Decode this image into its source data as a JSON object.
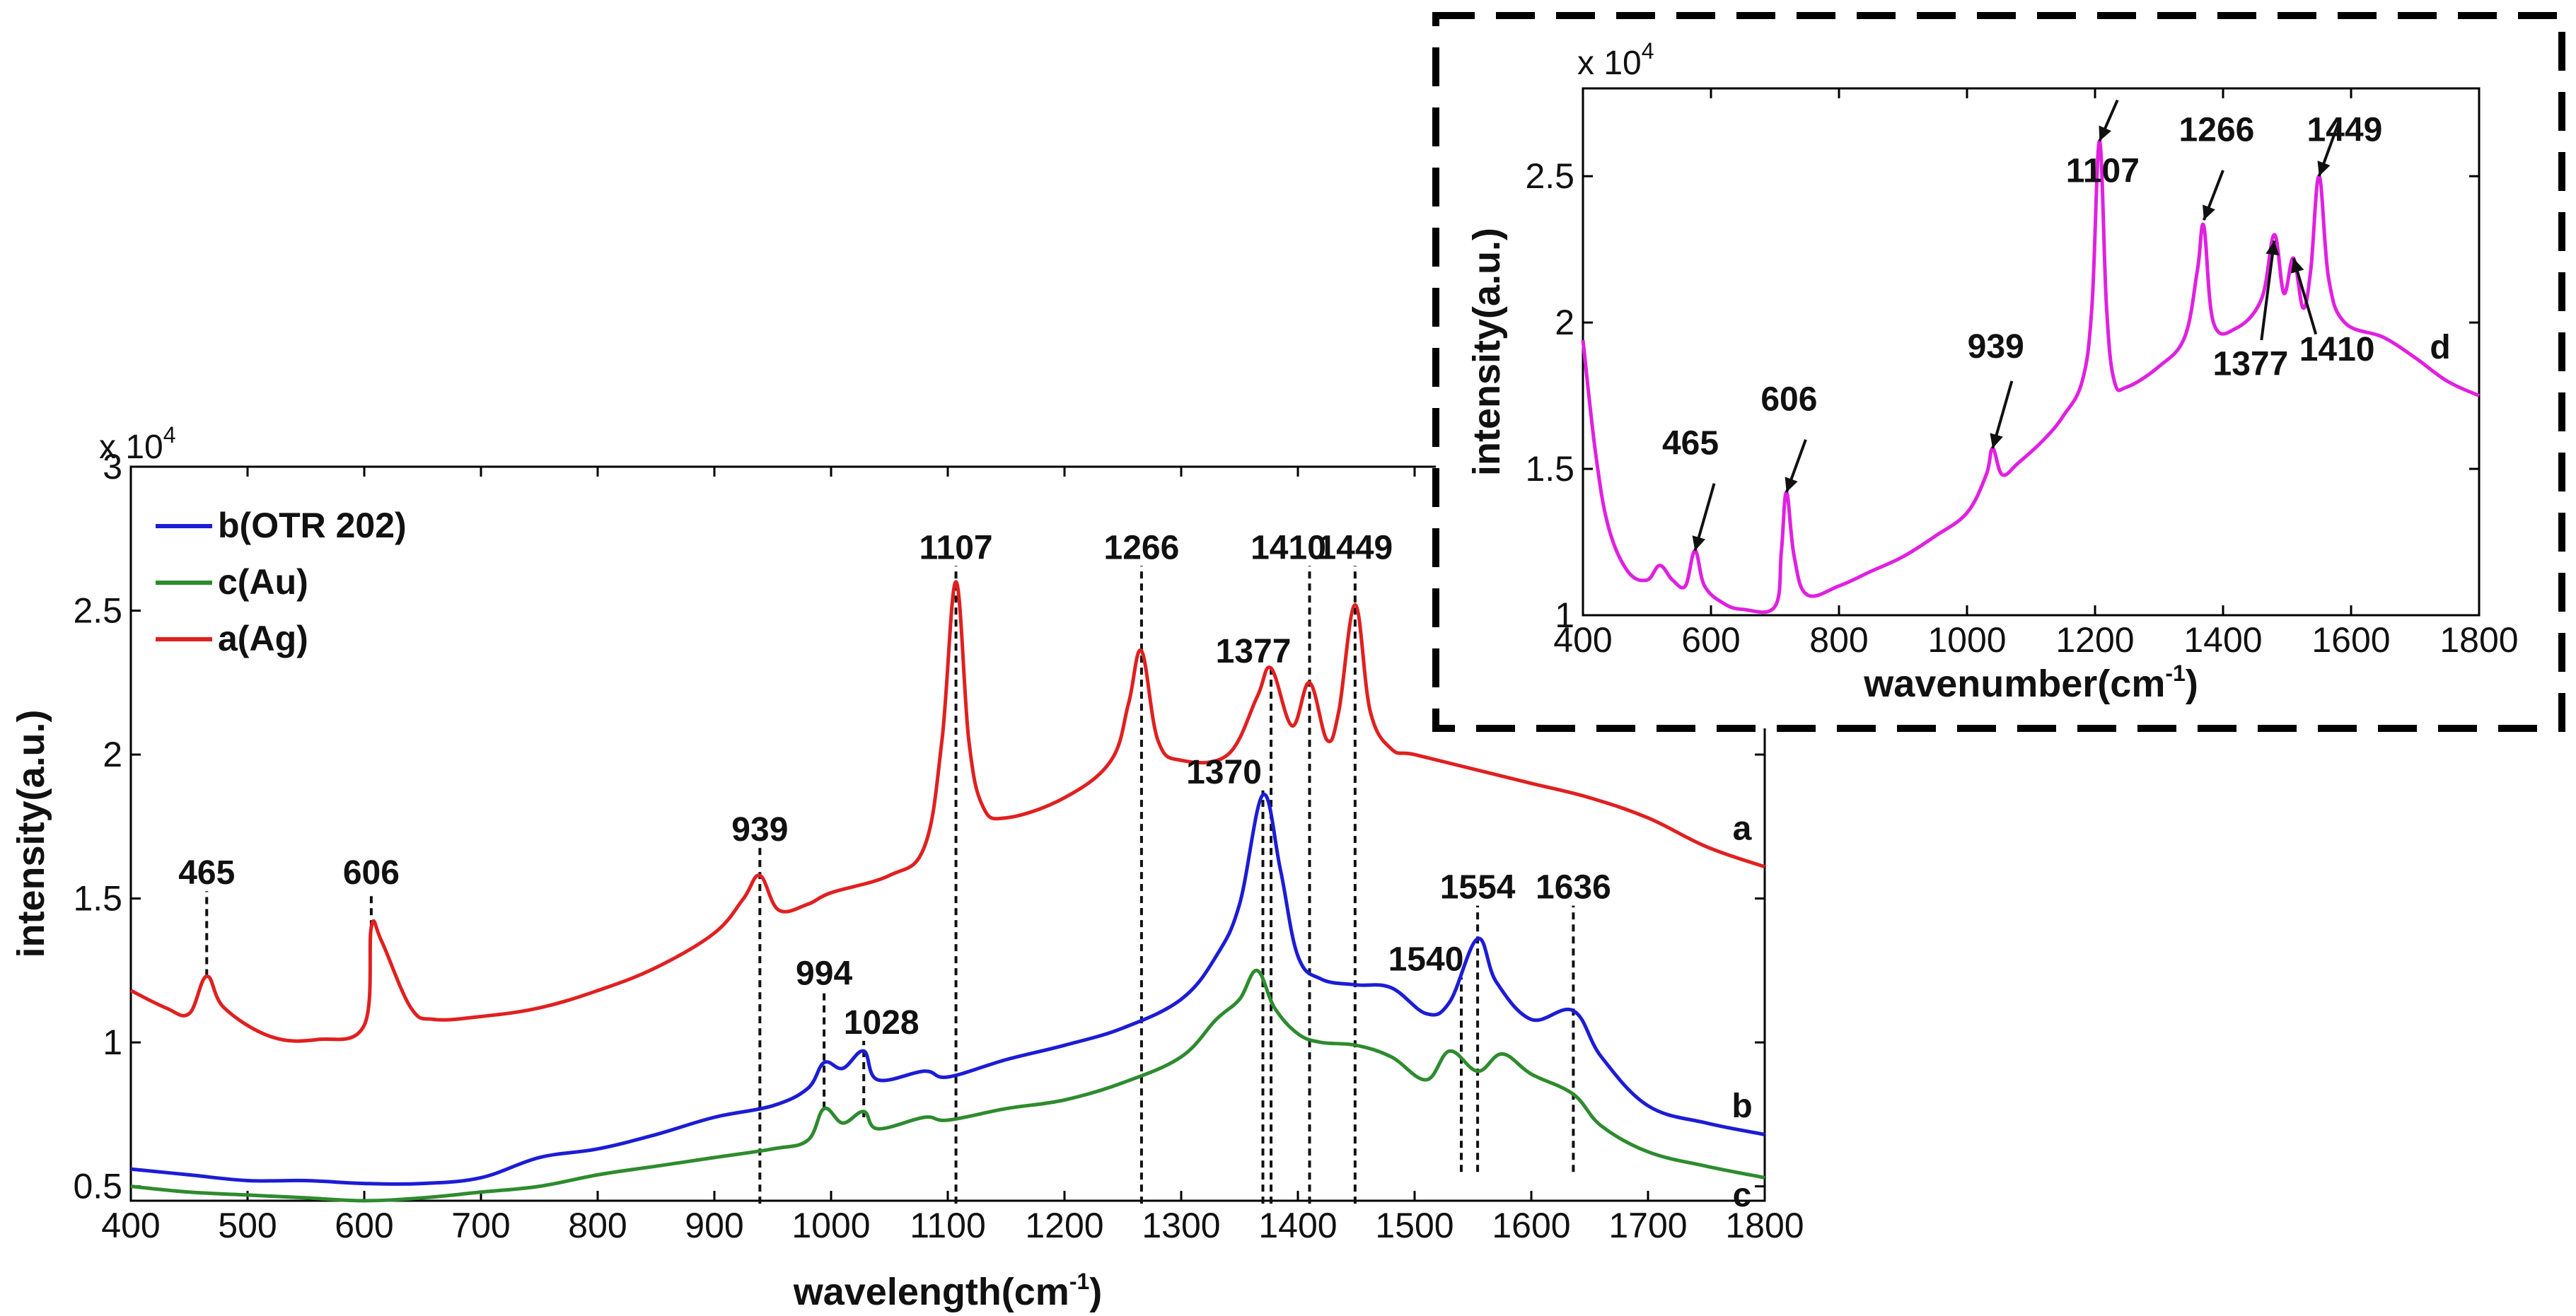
{
  "chart_data": [
    {
      "type": "line",
      "name": "main",
      "xlabel": "wavelength(cm",
      "xlabel_sup": "-1",
      "xlabel_end": ")",
      "ylabel": "intensity(a.u.)",
      "scale_prefix": "x 10",
      "scale_exp": "4",
      "xlim": [
        400,
        1800
      ],
      "ylim": [
        0.45,
        3
      ],
      "xticks": [
        400,
        500,
        600,
        700,
        800,
        900,
        1000,
        1100,
        1200,
        1300,
        1400,
        1500,
        1600,
        1700,
        1800
      ],
      "yticks": [
        0.5,
        1,
        1.5,
        2,
        2.5,
        3
      ],
      "legend_position": "top-left",
      "series": [
        {
          "name": "b(OTR 202)",
          "color": "#1c1cd6",
          "end_label": "b",
          "points": [
            [
              400,
              0.56
            ],
            [
              450,
              0.54
            ],
            [
              500,
              0.52
            ],
            [
              550,
              0.52
            ],
            [
              600,
              0.51
            ],
            [
              650,
              0.51
            ],
            [
              700,
              0.53
            ],
            [
              750,
              0.6
            ],
            [
              800,
              0.63
            ],
            [
              850,
              0.68
            ],
            [
              900,
              0.74
            ],
            [
              950,
              0.78
            ],
            [
              980,
              0.84
            ],
            [
              994,
              0.93
            ],
            [
              1010,
              0.91
            ],
            [
              1028,
              0.97
            ],
            [
              1040,
              0.87
            ],
            [
              1080,
              0.9
            ],
            [
              1100,
              0.88
            ],
            [
              1150,
              0.94
            ],
            [
              1200,
              0.99
            ],
            [
              1250,
              1.05
            ],
            [
              1300,
              1.15
            ],
            [
              1330,
              1.3
            ],
            [
              1350,
              1.48
            ],
            [
              1370,
              1.86
            ],
            [
              1385,
              1.6
            ],
            [
              1400,
              1.3
            ],
            [
              1420,
              1.22
            ],
            [
              1450,
              1.2
            ],
            [
              1480,
              1.19
            ],
            [
              1510,
              1.1
            ],
            [
              1530,
              1.14
            ],
            [
              1554,
              1.36
            ],
            [
              1570,
              1.21
            ],
            [
              1600,
              1.08
            ],
            [
              1636,
              1.11
            ],
            [
              1660,
              0.95
            ],
            [
              1700,
              0.78
            ],
            [
              1750,
              0.72
            ],
            [
              1800,
              0.68
            ]
          ]
        },
        {
          "name": "c(Au)",
          "color": "#2e8b2e",
          "end_label": "c",
          "points": [
            [
              400,
              0.5
            ],
            [
              450,
              0.48
            ],
            [
              500,
              0.47
            ],
            [
              550,
              0.46
            ],
            [
              600,
              0.45
            ],
            [
              650,
              0.46
            ],
            [
              700,
              0.48
            ],
            [
              750,
              0.5
            ],
            [
              800,
              0.54
            ],
            [
              850,
              0.57
            ],
            [
              900,
              0.6
            ],
            [
              950,
              0.63
            ],
            [
              980,
              0.66
            ],
            [
              994,
              0.77
            ],
            [
              1010,
              0.72
            ],
            [
              1028,
              0.76
            ],
            [
              1040,
              0.7
            ],
            [
              1080,
              0.74
            ],
            [
              1100,
              0.73
            ],
            [
              1150,
              0.77
            ],
            [
              1200,
              0.8
            ],
            [
              1250,
              0.86
            ],
            [
              1300,
              0.95
            ],
            [
              1330,
              1.08
            ],
            [
              1350,
              1.15
            ],
            [
              1365,
              1.25
            ],
            [
              1380,
              1.12
            ],
            [
              1400,
              1.03
            ],
            [
              1420,
              1.0
            ],
            [
              1450,
              0.99
            ],
            [
              1480,
              0.95
            ],
            [
              1510,
              0.87
            ],
            [
              1530,
              0.97
            ],
            [
              1554,
              0.9
            ],
            [
              1575,
              0.96
            ],
            [
              1600,
              0.89
            ],
            [
              1636,
              0.82
            ],
            [
              1660,
              0.71
            ],
            [
              1700,
              0.62
            ],
            [
              1750,
              0.57
            ],
            [
              1800,
              0.53
            ]
          ]
        },
        {
          "name": "a(Ag)",
          "color": "#e02020",
          "end_label": "a",
          "points": [
            [
              400,
              1.18
            ],
            [
              430,
              1.12
            ],
            [
              450,
              1.1
            ],
            [
              465,
              1.23
            ],
            [
              480,
              1.12
            ],
            [
              520,
              1.02
            ],
            [
              560,
              1.01
            ],
            [
              600,
              1.06
            ],
            [
              606,
              1.4
            ],
            [
              615,
              1.35
            ],
            [
              640,
              1.12
            ],
            [
              660,
              1.08
            ],
            [
              700,
              1.09
            ],
            [
              750,
              1.12
            ],
            [
              800,
              1.18
            ],
            [
              850,
              1.26
            ],
            [
              900,
              1.38
            ],
            [
              925,
              1.5
            ],
            [
              939,
              1.58
            ],
            [
              955,
              1.46
            ],
            [
              980,
              1.48
            ],
            [
              1000,
              1.52
            ],
            [
              1050,
              1.58
            ],
            [
              1080,
              1.68
            ],
            [
              1095,
              2.05
            ],
            [
              1107,
              2.6
            ],
            [
              1118,
              2.05
            ],
            [
              1130,
              1.82
            ],
            [
              1150,
              1.78
            ],
            [
              1200,
              1.85
            ],
            [
              1240,
              1.98
            ],
            [
              1255,
              2.18
            ],
            [
              1266,
              2.36
            ],
            [
              1280,
              2.05
            ],
            [
              1300,
              1.98
            ],
            [
              1340,
              2.0
            ],
            [
              1365,
              2.2
            ],
            [
              1377,
              2.3
            ],
            [
              1395,
              2.1
            ],
            [
              1410,
              2.25
            ],
            [
              1425,
              2.05
            ],
            [
              1435,
              2.15
            ],
            [
              1449,
              2.52
            ],
            [
              1462,
              2.15
            ],
            [
              1480,
              2.02
            ],
            [
              1500,
              2.0
            ],
            [
              1550,
              1.95
            ],
            [
              1600,
              1.9
            ],
            [
              1650,
              1.85
            ],
            [
              1700,
              1.78
            ],
            [
              1750,
              1.68
            ],
            [
              1800,
              1.61
            ]
          ]
        }
      ],
      "peak_labels": [
        {
          "label": "465",
          "x": 465,
          "y": 1.23,
          "ly": 1.55,
          "dx": 0
        },
        {
          "label": "606",
          "x": 606,
          "y": 1.4,
          "ly": 1.55,
          "dx": 0
        },
        {
          "label": "939",
          "x": 939,
          "y": 0.44,
          "ly": 1.7,
          "dx": 0
        },
        {
          "label": "994",
          "x": 994,
          "y": 0.77,
          "ly": 1.2,
          "dx": 0
        },
        {
          "label": "1028",
          "x": 1028,
          "y": 0.74,
          "ly": 1.03,
          "dx": 25
        },
        {
          "label": "1107",
          "x": 1107,
          "y": 0.44,
          "ly": 2.68,
          "dx": 0
        },
        {
          "label": "1266",
          "x": 1266,
          "y": 0.44,
          "ly": 2.68,
          "dx": 0
        },
        {
          "label": "1370",
          "x": 1370,
          "y": 0.44,
          "ly": 1.9,
          "dx": -55
        },
        {
          "label": "1377",
          "x": 1377,
          "y": 0.44,
          "ly": 2.32,
          "dx": -25
        },
        {
          "label": "1410",
          "x": 1410,
          "y": 0.44,
          "ly": 2.68,
          "dx": -30
        },
        {
          "label": "1449",
          "x": 1449,
          "y": 0.44,
          "ly": 2.68,
          "dx": 0
        },
        {
          "label": "1540",
          "x": 1540,
          "y": 0.55,
          "ly": 1.25,
          "dx": -50
        },
        {
          "label": "1554",
          "x": 1554,
          "y": 0.55,
          "ly": 1.5,
          "dx": 0
        },
        {
          "label": "1636",
          "x": 1636,
          "y": 0.55,
          "ly": 1.5,
          "dx": 0
        }
      ]
    },
    {
      "type": "line",
      "name": "inset",
      "xlabel": "wavenumber(cm",
      "xlabel_sup": "-1",
      "xlabel_end": ")",
      "ylabel": "intensity(a.u.)",
      "scale_prefix": "x 10",
      "scale_exp": "4",
      "xlim": [
        400,
        1800
      ],
      "ylim": [
        1,
        2.8
      ],
      "xticks": [
        400,
        600,
        800,
        1000,
        1200,
        1400,
        1600,
        1800
      ],
      "yticks": [
        1,
        1.5,
        2,
        2.5
      ],
      "series": [
        {
          "name": "d",
          "color": "#e020e0",
          "end_label": "d",
          "points": [
            [
              400,
              1.94
            ],
            [
              420,
              1.55
            ],
            [
              440,
              1.3
            ],
            [
              470,
              1.15
            ],
            [
              500,
              1.12
            ],
            [
              520,
              1.17
            ],
            [
              540,
              1.12
            ],
            [
              560,
              1.1
            ],
            [
              575,
              1.22
            ],
            [
              590,
              1.1
            ],
            [
              620,
              1.04
            ],
            [
              650,
              1.02
            ],
            [
              700,
              1.03
            ],
            [
              710,
              1.22
            ],
            [
              718,
              1.42
            ],
            [
              730,
              1.2
            ],
            [
              750,
              1.07
            ],
            [
              800,
              1.1
            ],
            [
              850,
              1.15
            ],
            [
              900,
              1.2
            ],
            [
              950,
              1.27
            ],
            [
              1000,
              1.35
            ],
            [
              1030,
              1.48
            ],
            [
              1040,
              1.57
            ],
            [
              1055,
              1.48
            ],
            [
              1080,
              1.52
            ],
            [
              1120,
              1.6
            ],
            [
              1150,
              1.68
            ],
            [
              1180,
              1.8
            ],
            [
              1195,
              2.05
            ],
            [
              1207,
              2.62
            ],
            [
              1218,
              2.05
            ],
            [
              1230,
              1.8
            ],
            [
              1250,
              1.78
            ],
            [
              1300,
              1.85
            ],
            [
              1340,
              1.95
            ],
            [
              1360,
              2.18
            ],
            [
              1370,
              2.33
            ],
            [
              1385,
              2.0
            ],
            [
              1420,
              1.98
            ],
            [
              1460,
              2.08
            ],
            [
              1480,
              2.3
            ],
            [
              1495,
              2.1
            ],
            [
              1510,
              2.22
            ],
            [
              1525,
              2.05
            ],
            [
              1537,
              2.18
            ],
            [
              1550,
              2.5
            ],
            [
              1565,
              2.15
            ],
            [
              1590,
              2.0
            ],
            [
              1650,
              1.95
            ],
            [
              1700,
              1.88
            ],
            [
              1750,
              1.8
            ],
            [
              1800,
              1.75
            ]
          ]
        }
      ],
      "peak_labels": [
        {
          "label": "465",
          "x": 575,
          "y": 1.22,
          "tx": 605,
          "ty": 1.45,
          "dx": 0
        },
        {
          "label": "606",
          "x": 718,
          "y": 1.42,
          "tx": 748,
          "ty": 1.6,
          "dx": 0
        },
        {
          "label": "939",
          "x": 1040,
          "y": 1.57,
          "tx": 1070,
          "ty": 1.8,
          "dx": 0
        },
        {
          "label": "1107",
          "x": 1207,
          "y": 2.62,
          "tx": 1235,
          "ty": 2.76,
          "dx": 0
        },
        {
          "label": "1266",
          "x": 1370,
          "y": 2.35,
          "tx": 1400,
          "ty": 2.52,
          "dx": 0
        },
        {
          "label": "1449",
          "x": 1550,
          "y": 2.5,
          "tx": 1580,
          "ty": 2.68,
          "dx": 0
        },
        {
          "label": "1377",
          "x": 1480,
          "y": 2.28,
          "tx": 1460,
          "ty": 1.94,
          "dx": 0
        },
        {
          "label": "1410",
          "x": 1510,
          "y": 2.22,
          "tx": 1545,
          "ty": 1.96,
          "dx": 0
        }
      ],
      "label_texts": [
        {
          "text": "465",
          "x": 568,
          "y": 1.55
        },
        {
          "text": "606",
          "x": 722,
          "y": 1.7
        },
        {
          "text": "939",
          "x": 1045,
          "y": 1.88
        },
        {
          "text": "1107",
          "x": 1212,
          "y": 2.48
        },
        {
          "text": "1266",
          "x": 1390,
          "y": 2.62
        },
        {
          "text": "1449",
          "x": 1590,
          "y": 2.62
        },
        {
          "text": "1377",
          "x": 1443,
          "y": 1.82
        },
        {
          "text": "1410",
          "x": 1578,
          "y": 1.87
        }
      ]
    }
  ]
}
